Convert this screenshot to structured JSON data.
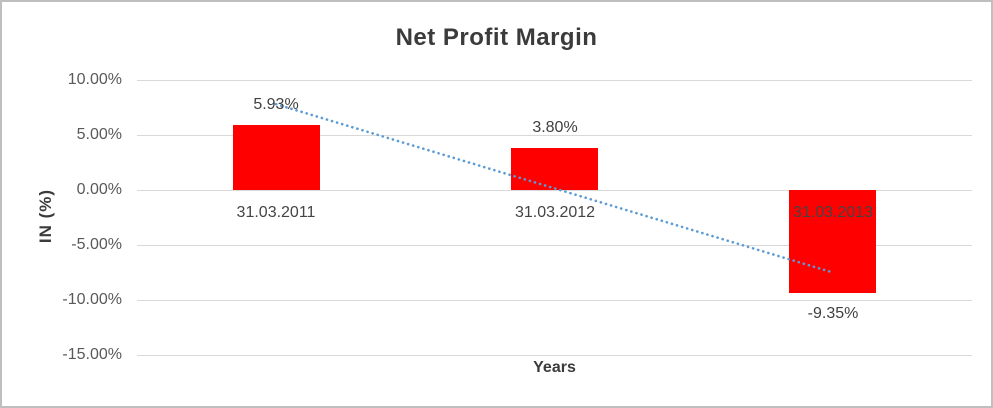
{
  "chart_data": {
    "type": "bar",
    "title": "Net Profit Margin",
    "xlabel": "Years",
    "ylabel": "IN (%)",
    "categories": [
      "31.03.2011",
      "31.03.2012",
      "31.03.2013"
    ],
    "values": [
      5.93,
      3.8,
      -9.35
    ],
    "data_labels": [
      "5.93%",
      "3.80%",
      "-9.35%"
    ],
    "y_tick_values": [
      10,
      5,
      0,
      -5,
      -10,
      -15
    ],
    "y_tick_labels": [
      "10.00%",
      "5.00%",
      "0.00%",
      "-5.00%",
      "-10.00%",
      "-15.00%"
    ],
    "ylim": [
      -15,
      10
    ],
    "grid": true,
    "legend": "none",
    "bar_color": "#ff0000",
    "trendline": {
      "type": "linear",
      "style": "dotted",
      "color": "#5b9bd5",
      "start_value": 7.8,
      "end_value": -7.5
    }
  },
  "colors": {
    "grid": "#d9d9d9",
    "frame_border": "#bfbfbf",
    "title_text": "#3b3b3b",
    "tick_text": "#595959",
    "label_text": "#404040",
    "background": "#ffffff"
  }
}
